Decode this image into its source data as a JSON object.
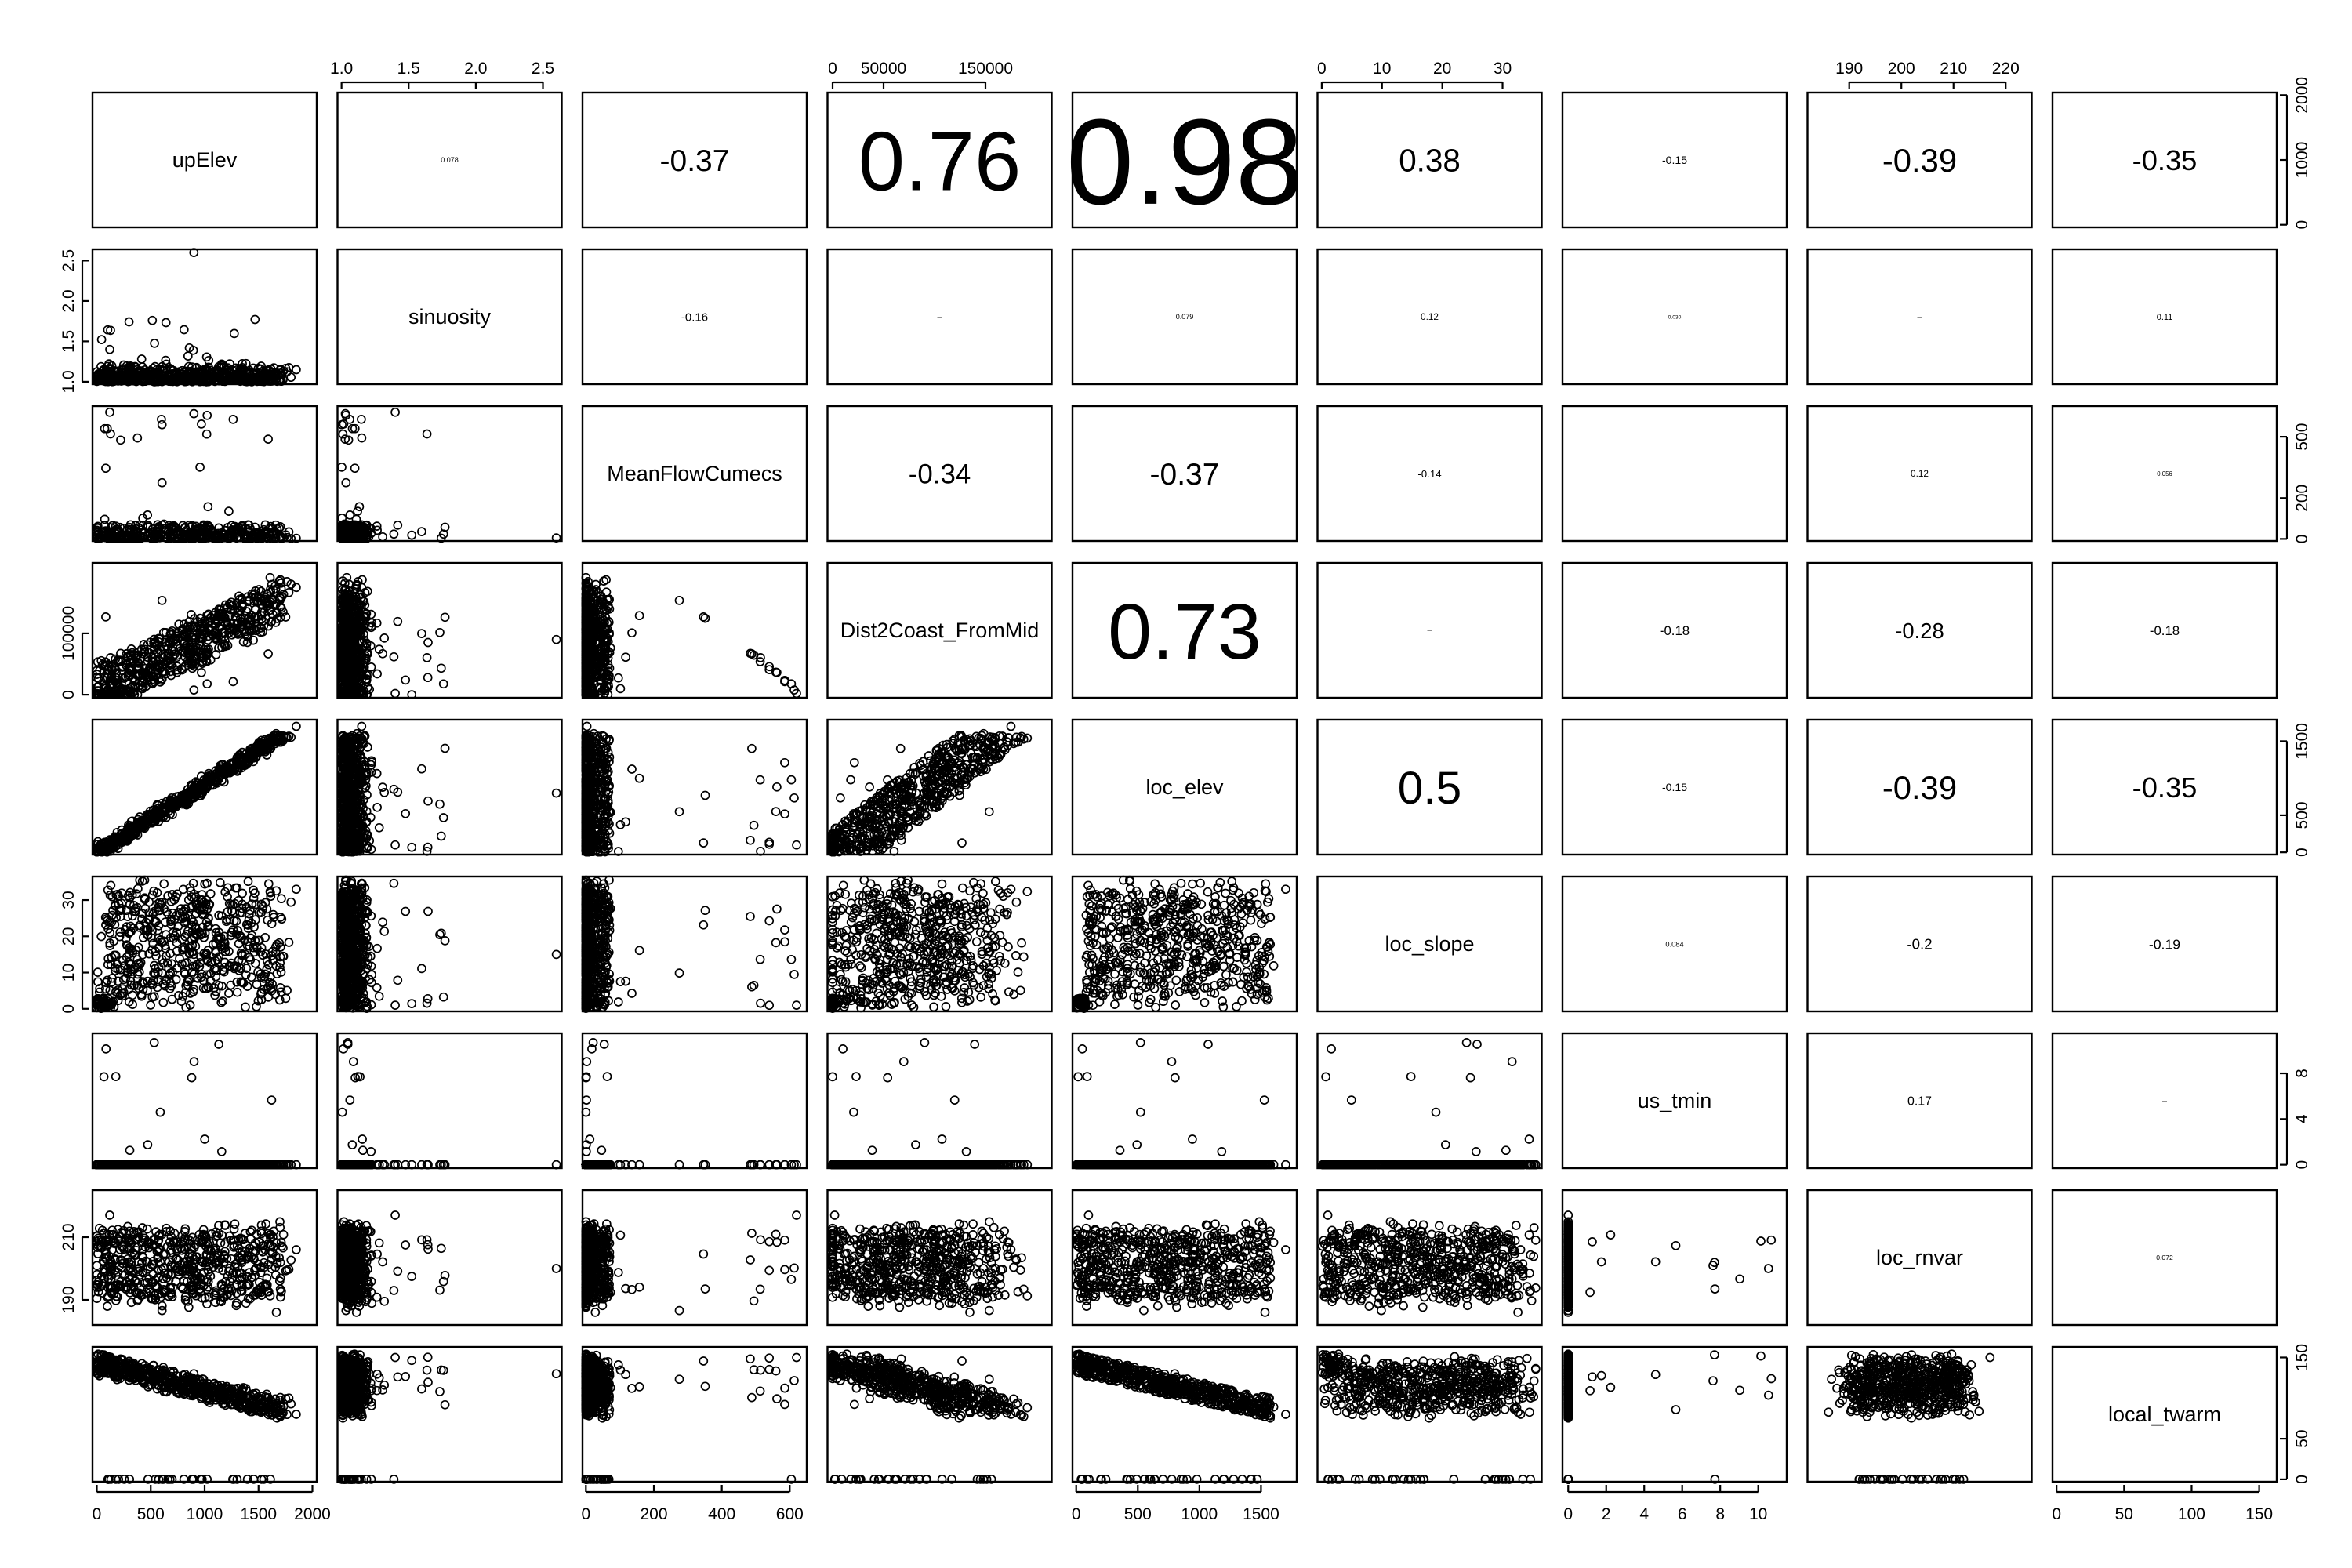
{
  "chart_data": {
    "type": "scatter",
    "plot_kind": "pairs-matrix",
    "variables": [
      "upElev",
      "sinuosity",
      "MeanFlowCumecs",
      "Dist2Coast_FromMid",
      "loc_elev",
      "loc_slope",
      "us_tmin",
      "loc_rnvar",
      "local_twarm"
    ],
    "ranges": [
      [
        -40,
        2040
      ],
      [
        0.97,
        2.64
      ],
      [
        -10,
        650
      ],
      [
        -5000,
        215000
      ],
      [
        -30,
        1790
      ],
      [
        -0.7,
        36.5
      ],
      [
        -0.3,
        11.5
      ],
      [
        182,
        225
      ],
      [
        -3,
        163
      ]
    ],
    "axis_ticks": {
      "top": {
        "sinuosity": [
          "1.0",
          "1.5",
          "2.0",
          "2.5"
        ],
        "Dist2Coast_FromMid": [
          "0",
          "50000",
          "150000"
        ],
        "loc_slope": [
          "0",
          "10",
          "20",
          "30"
        ],
        "loc_rnvar": [
          "190",
          "200",
          "210",
          "220"
        ]
      },
      "bottom": {
        "upElev": [
          "0",
          "500",
          "1000",
          "1500",
          "2000"
        ],
        "MeanFlowCumecs": [
          "0",
          "200",
          "400",
          "600"
        ],
        "loc_elev": [
          "0",
          "500",
          "1000",
          "1500"
        ],
        "us_tmin": [
          "0",
          "2",
          "4",
          "6",
          "8",
          "10"
        ],
        "local_twarm": [
          "0",
          "50",
          "100",
          "150"
        ]
      },
      "left": {
        "sinuosity": [
          "1.0",
          "1.5",
          "2.0",
          "2.5"
        ],
        "Dist2Coast_FromMid": [
          "0",
          "100000"
        ],
        "loc_slope": [
          "0",
          "10",
          "20",
          "30"
        ],
        "loc_rnvar": [
          "190",
          "210"
        ]
      },
      "right": {
        "upElev": [
          "0",
          "1000",
          "2000"
        ],
        "MeanFlowCumecs": [
          "0",
          "200",
          "500"
        ],
        "loc_elev": [
          "0",
          "500",
          "1500"
        ],
        "us_tmin": [
          "0",
          "4",
          "8"
        ],
        "local_twarm": [
          "0",
          "50",
          "150"
        ]
      }
    },
    "correlations": [
      {
        "row": 0,
        "col": 1,
        "r": 0.078,
        "label": "0.078"
      },
      {
        "row": 0,
        "col": 2,
        "r": -0.37,
        "label": "-0.37"
      },
      {
        "row": 0,
        "col": 3,
        "r": 0.76,
        "label": "0.76"
      },
      {
        "row": 0,
        "col": 4,
        "r": 0.98,
        "label": "0.98"
      },
      {
        "row": 0,
        "col": 5,
        "r": 0.38,
        "label": "0.38"
      },
      {
        "row": 0,
        "col": 6,
        "r": -0.15,
        "label": "-0.15"
      },
      {
        "row": 0,
        "col": 7,
        "r": -0.39,
        "label": "-0.39"
      },
      {
        "row": 0,
        "col": 8,
        "r": -0.35,
        "label": "-0.35"
      },
      {
        "row": 1,
        "col": 2,
        "r": -0.16,
        "label": "-0.16"
      },
      {
        "row": 1,
        "col": 3,
        "r": 0.0,
        "label": "—"
      },
      {
        "row": 1,
        "col": 4,
        "r": 0.079,
        "label": "0.079"
      },
      {
        "row": 1,
        "col": 5,
        "r": 0.12,
        "label": "0.12"
      },
      {
        "row": 1,
        "col": 6,
        "r": 0.03,
        "label": "0.030"
      },
      {
        "row": 1,
        "col": 7,
        "r": 0.0,
        "label": "—"
      },
      {
        "row": 1,
        "col": 8,
        "r": 0.11,
        "label": "0.11"
      },
      {
        "row": 2,
        "col": 3,
        "r": -0.34,
        "label": "-0.34"
      },
      {
        "row": 2,
        "col": 4,
        "r": -0.37,
        "label": "-0.37"
      },
      {
        "row": 2,
        "col": 5,
        "r": -0.14,
        "label": "-0.14"
      },
      {
        "row": 2,
        "col": 6,
        "r": 0.0,
        "label": "—"
      },
      {
        "row": 2,
        "col": 7,
        "r": 0.12,
        "label": "0.12"
      },
      {
        "row": 2,
        "col": 8,
        "r": 0.056,
        "label": "0.056"
      },
      {
        "row": 3,
        "col": 4,
        "r": 0.73,
        "label": "0.73"
      },
      {
        "row": 3,
        "col": 5,
        "r": 0.0,
        "label": "—"
      },
      {
        "row": 3,
        "col": 6,
        "r": -0.18,
        "label": "-0.18"
      },
      {
        "row": 3,
        "col": 7,
        "r": -0.28,
        "label": "-0.28"
      },
      {
        "row": 3,
        "col": 8,
        "r": -0.18,
        "label": "-0.18"
      },
      {
        "row": 4,
        "col": 5,
        "r": 0.5,
        "label": "0.5"
      },
      {
        "row": 4,
        "col": 6,
        "r": -0.15,
        "label": "-0.15"
      },
      {
        "row": 4,
        "col": 7,
        "r": -0.39,
        "label": "-0.39"
      },
      {
        "row": 4,
        "col": 8,
        "r": -0.35,
        "label": "-0.35"
      },
      {
        "row": 5,
        "col": 6,
        "r": 0.084,
        "label": "0.084"
      },
      {
        "row": 5,
        "col": 7,
        "r": -0.2,
        "label": "-0.2"
      },
      {
        "row": 5,
        "col": 8,
        "r": -0.19,
        "label": "-0.19"
      },
      {
        "row": 6,
        "col": 7,
        "r": 0.17,
        "label": "0.17"
      },
      {
        "row": 6,
        "col": 8,
        "r": 0.0,
        "label": "—"
      },
      {
        "row": 7,
        "col": 8,
        "r": 0.072,
        "label": "0.072"
      }
    ]
  }
}
